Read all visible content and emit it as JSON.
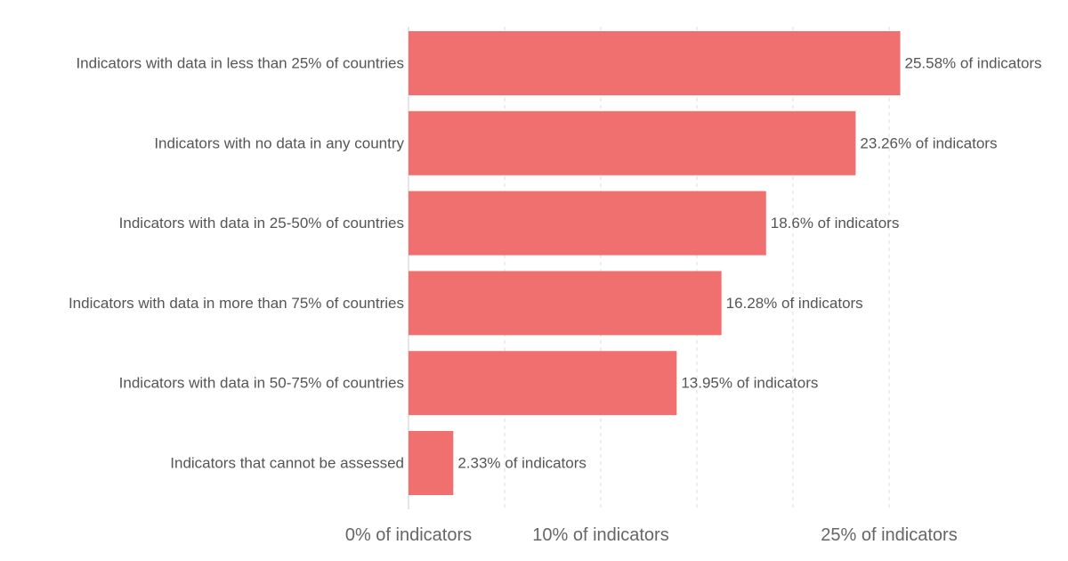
{
  "chart_data": {
    "type": "bar",
    "orientation": "horizontal",
    "categories": [
      "Indicators with data in less than 25% of countries",
      "Indicators with no data in any country",
      "Indicators with data in 25-50% of countries",
      "Indicators with data in more than 75% of countries",
      "Indicators with data in 50-75% of countries",
      "Indicators that cannot be assessed"
    ],
    "values": [
      25.58,
      23.26,
      18.6,
      16.28,
      13.95,
      2.33
    ],
    "value_labels": [
      "25.58% of indicators",
      "23.26% of indicators",
      "18.6% of indicators",
      "16.28% of indicators",
      "13.95% of indicators",
      "2.33% of indicators"
    ],
    "xlim": [
      0,
      30
    ],
    "x_ticks": [
      {
        "value": 0,
        "label": "0% of indicators"
      },
      {
        "value": 10,
        "label": "10% of indicators"
      },
      {
        "value": 25,
        "label": "25% of indicators"
      }
    ],
    "x_gridlines": [
      5,
      10,
      15,
      20,
      25
    ],
    "grid": true,
    "bar_color": "#f07070",
    "title": "",
    "xlabel": "",
    "ylabel": ""
  }
}
